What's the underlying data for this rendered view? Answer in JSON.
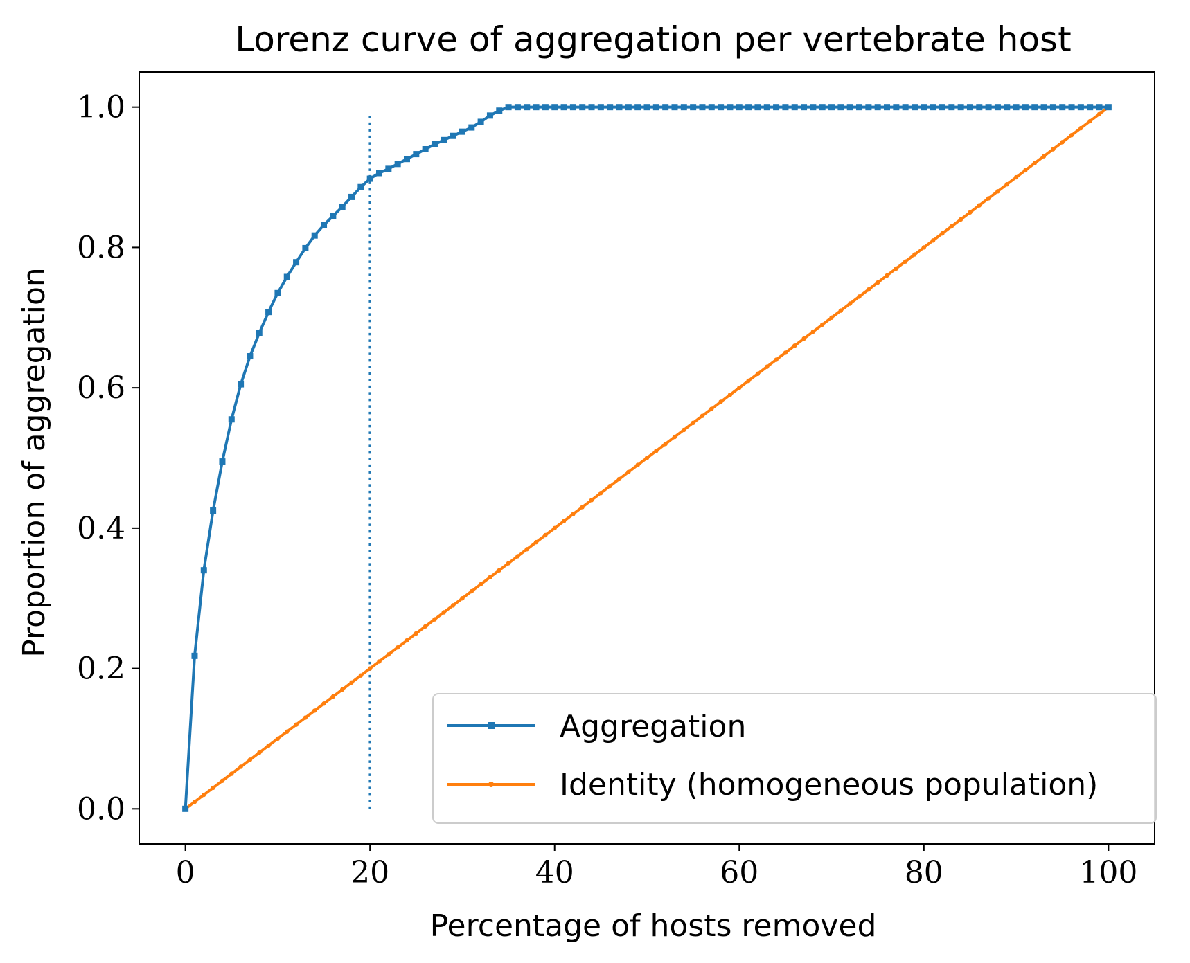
{
  "chart_data": {
    "type": "line",
    "title": "Lorenz curve of aggregation per vertebrate host",
    "xlabel": "Percentage of hosts removed",
    "ylabel": "Proportion of aggregation",
    "xlim": [
      -5,
      105
    ],
    "ylim": [
      -0.05,
      1.05
    ],
    "xticks": [
      0,
      20,
      40,
      60,
      80,
      100
    ],
    "xtick_labels": [
      "0",
      "20",
      "40",
      "60",
      "80",
      "100"
    ],
    "yticks": [
      0.0,
      0.2,
      0.4,
      0.6,
      0.8,
      1.0
    ],
    "ytick_labels": [
      "0.0",
      "0.2",
      "0.4",
      "0.6",
      "0.8",
      "1.0"
    ],
    "grid": false,
    "legend_position": "lower-right",
    "vline": {
      "x": 20,
      "y_range": [
        0,
        0.99
      ],
      "style": "dotted",
      "color": "#1f77b4"
    },
    "series": [
      {
        "name": "Aggregation",
        "color": "#1f77b4",
        "marker": "square",
        "x": [
          0,
          1,
          2,
          3,
          4,
          5,
          6,
          7,
          8,
          9,
          10,
          11,
          12,
          13,
          14,
          15,
          16,
          17,
          18,
          19,
          20,
          21,
          22,
          23,
          24,
          25,
          26,
          27,
          28,
          29,
          30,
          31,
          32,
          33,
          34,
          35
        ],
        "y": [
          0.0,
          0.218,
          0.34,
          0.425,
          0.495,
          0.555,
          0.605,
          0.645,
          0.678,
          0.708,
          0.735,
          0.758,
          0.779,
          0.799,
          0.817,
          0.832,
          0.845,
          0.858,
          0.872,
          0.886,
          0.898,
          0.906,
          0.912,
          0.919,
          0.926,
          0.933,
          0.94,
          0.947,
          0.953,
          0.959,
          0.965,
          0.971,
          0.979,
          0.988,
          0.995,
          1.0
        ],
        "plateau": {
          "from": 35,
          "to": 100,
          "value": 1.0
        }
      },
      {
        "name": "Identity (homogeneous population)",
        "color": "#ff7f0e",
        "marker": "dot",
        "x_range": [
          0,
          100
        ],
        "y_range": [
          0.0,
          1.0
        ]
      }
    ]
  }
}
